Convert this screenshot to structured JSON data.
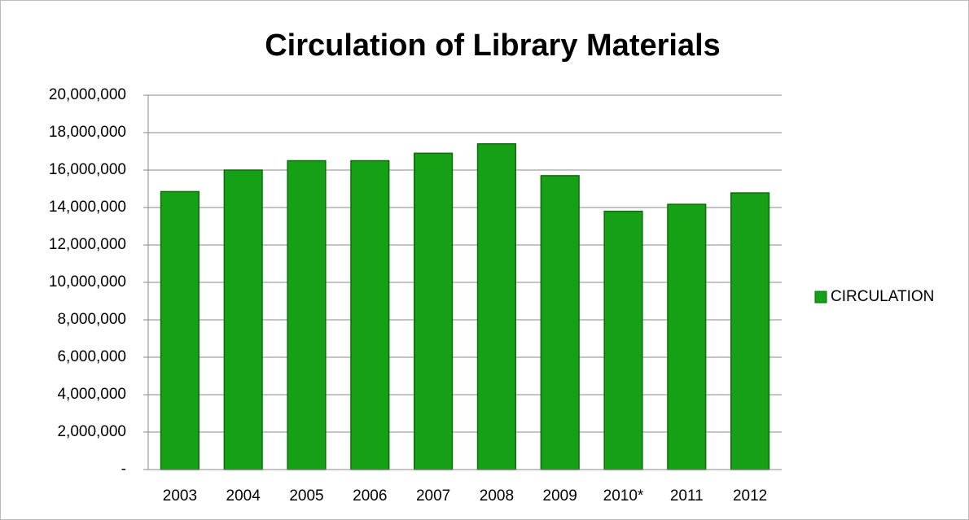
{
  "chart_data": {
    "type": "bar",
    "title": "Circulation of Library Materials",
    "categories": [
      "2003",
      "2004",
      "2005",
      "2006",
      "2007",
      "2008",
      "2009",
      "2010*",
      "2011",
      "2012"
    ],
    "series": [
      {
        "name": "CIRCULATION",
        "color": "#16a016",
        "values": [
          14850000,
          16000000,
          16500000,
          16500000,
          16900000,
          17400000,
          15700000,
          13800000,
          14170000,
          14780000
        ]
      }
    ],
    "ylim": [
      0,
      20000000
    ],
    "yticks": [
      {
        "value": 0,
        "label": "-"
      },
      {
        "value": 2000000,
        "label": "2,000,000"
      },
      {
        "value": 4000000,
        "label": "4,000,000"
      },
      {
        "value": 6000000,
        "label": "6,000,000"
      },
      {
        "value": 8000000,
        "label": "8,000,000"
      },
      {
        "value": 10000000,
        "label": "10,000,000"
      },
      {
        "value": 12000000,
        "label": "12,000,000"
      },
      {
        "value": 14000000,
        "label": "14,000,000"
      },
      {
        "value": 16000000,
        "label": "16,000,000"
      },
      {
        "value": 18000000,
        "label": "18,000,000"
      },
      {
        "value": 20000000,
        "label": "20,000,000"
      }
    ],
    "grid": true,
    "legend": "right"
  }
}
